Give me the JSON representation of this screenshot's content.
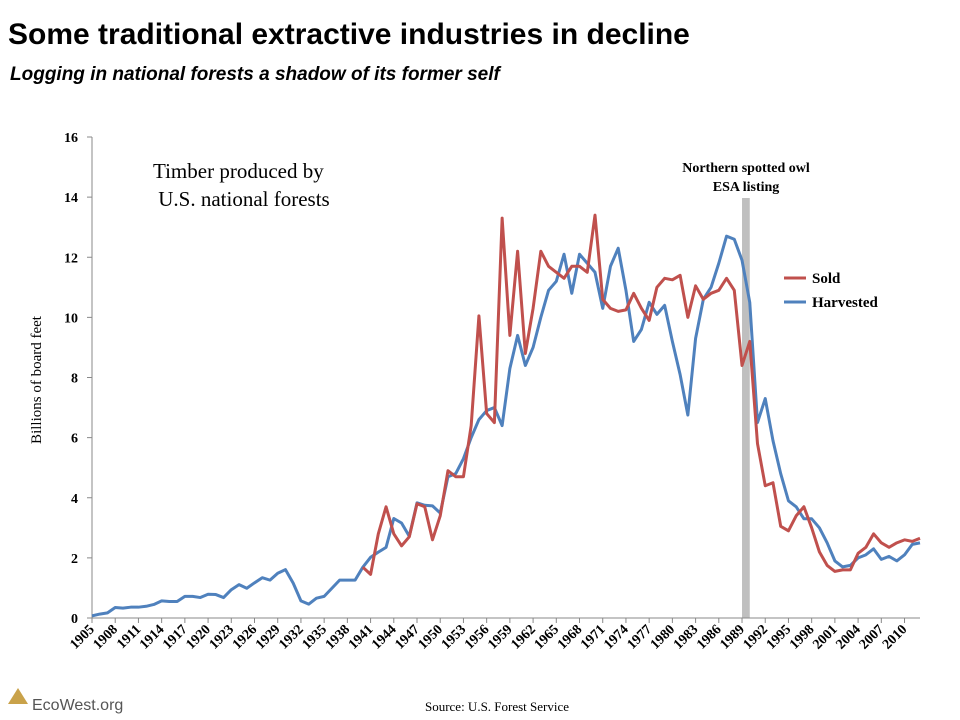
{
  "header": {
    "title": "Some traditional extractive industries in decline",
    "subtitle": "Logging in national forests a shadow of its former self"
  },
  "chart_data": {
    "type": "line",
    "annotation": [
      "Timber produced by",
      " U.S. national forests"
    ],
    "y_label": "Billions of board feet",
    "source": "Source: U.S. Forest Service",
    "shaded_region": {
      "label": [
        "Northern spotted owl",
        "ESA listing"
      ],
      "x": [
        1989,
        1990
      ],
      "color": "#bfbfbf"
    },
    "legend": "right",
    "xlim": [
      1905,
      2012
    ],
    "ylim": [
      0,
      16
    ],
    "yticks": [
      0,
      2,
      4,
      6,
      8,
      10,
      12,
      14,
      16
    ],
    "xticks": [
      1905,
      1908,
      1911,
      1914,
      1917,
      1920,
      1923,
      1926,
      1929,
      1932,
      1935,
      1938,
      1941,
      1944,
      1947,
      1950,
      1953,
      1956,
      1959,
      1962,
      1965,
      1968,
      1971,
      1974,
      1977,
      1980,
      1983,
      1986,
      1989,
      1992,
      1995,
      1998,
      2001,
      2004,
      2007,
      2010
    ],
    "x": [
      1905,
      1906,
      1907,
      1908,
      1909,
      1910,
      1911,
      1912,
      1913,
      1914,
      1915,
      1916,
      1917,
      1918,
      1919,
      1920,
      1921,
      1922,
      1923,
      1924,
      1925,
      1926,
      1927,
      1928,
      1929,
      1930,
      1931,
      1932,
      1933,
      1934,
      1935,
      1936,
      1937,
      1938,
      1939,
      1940,
      1941,
      1942,
      1943,
      1944,
      1945,
      1946,
      1947,
      1948,
      1949,
      1950,
      1951,
      1952,
      1953,
      1954,
      1955,
      1956,
      1957,
      1958,
      1959,
      1960,
      1961,
      1962,
      1963,
      1964,
      1965,
      1966,
      1967,
      1968,
      1969,
      1970,
      1971,
      1972,
      1973,
      1974,
      1975,
      1976,
      1977,
      1978,
      1979,
      1980,
      1981,
      1982,
      1983,
      1984,
      1985,
      1986,
      1987,
      1988,
      1989,
      1990,
      1991,
      1992,
      1993,
      1994,
      1995,
      1996,
      1997,
      1998,
      1999,
      2000,
      2001,
      2002,
      2003,
      2004,
      2005,
      2006,
      2007,
      2008,
      2009,
      2010,
      2011,
      2012
    ],
    "series": [
      {
        "name": "Sold",
        "color": "#c0504d",
        "values": [
          null,
          null,
          null,
          null,
          null,
          null,
          null,
          null,
          null,
          null,
          null,
          null,
          null,
          null,
          null,
          null,
          null,
          null,
          null,
          null,
          null,
          null,
          null,
          null,
          null,
          null,
          null,
          null,
          null,
          null,
          null,
          null,
          null,
          null,
          null,
          1.69,
          1.45,
          2.8,
          3.7,
          2.8,
          2.4,
          2.7,
          3.8,
          3.7,
          2.6,
          3.4,
          4.9,
          4.7,
          4.7,
          6.4,
          10.05,
          6.8,
          6.5,
          13.3,
          9.4,
          12.2,
          8.8,
          10.3,
          12.2,
          11.7,
          11.5,
          11.3,
          11.7,
          11.7,
          11.5,
          13.4,
          10.6,
          10.3,
          10.2,
          10.25,
          10.8,
          10.3,
          9.9,
          11.0,
          11.3,
          11.25,
          11.4,
          10.0,
          11.05,
          10.6,
          10.8,
          10.9,
          11.3,
          10.9,
          8.4,
          9.2,
          5.8,
          4.4,
          4.5,
          3.05,
          2.9,
          3.4,
          3.7,
          3.0,
          2.2,
          1.75,
          1.55,
          1.6,
          1.6,
          2.15,
          2.35,
          2.8,
          2.5,
          2.35,
          2.5,
          2.6,
          2.55,
          2.65
        ]
      },
      {
        "name": "Harvested",
        "color": "#4f81bd",
        "values": [
          0.07,
          0.13,
          0.17,
          0.35,
          0.33,
          0.36,
          0.36,
          0.39,
          0.45,
          0.57,
          0.55,
          0.55,
          0.72,
          0.72,
          0.68,
          0.79,
          0.78,
          0.68,
          0.94,
          1.11,
          0.99,
          1.17,
          1.34,
          1.26,
          1.49,
          1.61,
          1.16,
          0.57,
          0.46,
          0.66,
          0.72,
          0.99,
          1.26,
          1.26,
          1.26,
          1.69,
          2.02,
          2.19,
          2.35,
          3.31,
          3.16,
          2.72,
          3.83,
          3.75,
          3.73,
          3.49,
          4.7,
          4.8,
          5.3,
          6.0,
          6.6,
          6.9,
          7.0,
          6.4,
          8.3,
          9.4,
          8.4,
          9.0,
          10.0,
          10.9,
          11.2,
          12.1,
          10.8,
          12.1,
          11.8,
          11.5,
          10.3,
          11.7,
          12.3,
          10.9,
          9.2,
          9.6,
          10.5,
          10.1,
          10.4,
          9.2,
          8.1,
          6.75,
          9.3,
          10.6,
          11.0,
          11.8,
          12.7,
          12.6,
          11.9,
          10.5,
          6.5,
          7.3,
          5.9,
          4.8,
          3.9,
          3.7,
          3.3,
          3.3,
          3.0,
          2.5,
          1.9,
          1.7,
          1.75,
          2.0,
          2.1,
          2.3,
          1.95,
          2.05,
          1.9,
          2.1,
          2.45,
          2.5
        ]
      }
    ]
  },
  "footer": {
    "logo": "EcoWest.org"
  }
}
